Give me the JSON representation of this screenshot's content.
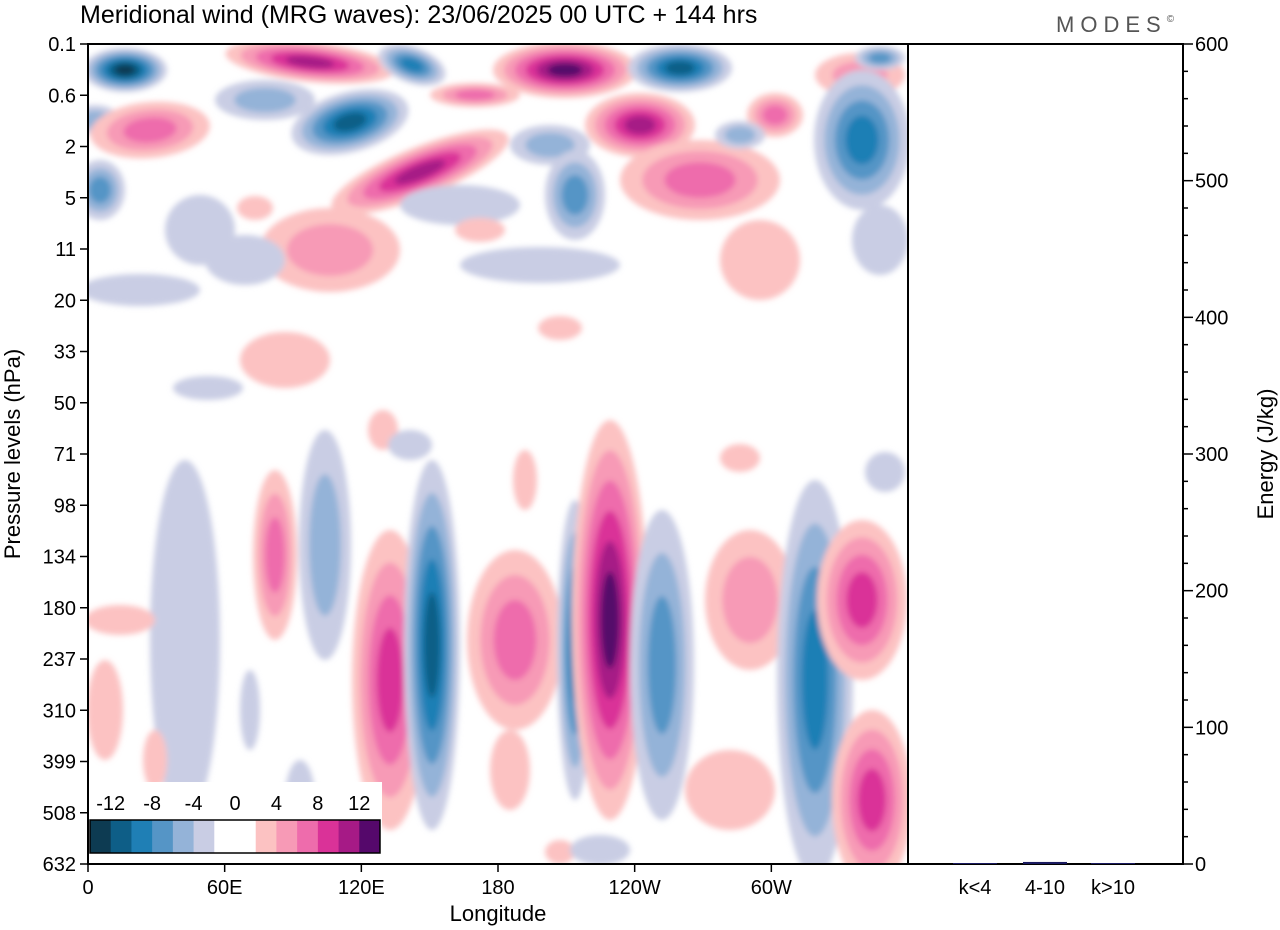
{
  "title": "Meridional wind (MRG waves):  23/06/2025  00 UTC  + 144 hrs",
  "logo": "MODES",
  "logo_mark": "©",
  "chart_data": [
    {
      "type": "heatmap",
      "xlabel": "Longitude",
      "ylabel": "Pressure levels (hPa)",
      "x_ticks": [
        "0",
        "60E",
        "120E",
        "180",
        "120W",
        "60W"
      ],
      "y_ticks": [
        "0.1",
        "0.6",
        "2",
        "5",
        "11",
        "20",
        "33",
        "50",
        "71",
        "98",
        "134",
        "180",
        "237",
        "310",
        "399",
        "508",
        "632"
      ],
      "colorbar": {
        "labels": [
          "-12",
          "-8",
          "-4",
          "0",
          "4",
          "8",
          "12"
        ],
        "levels": [
          -14,
          -12,
          -10,
          -8,
          -6,
          -4,
          -2,
          2,
          4,
          6,
          8,
          10,
          12,
          14
        ],
        "colors": [
          "#0d3b52",
          "#0e5e87",
          "#1f7fb5",
          "#5595c6",
          "#94b3d8",
          "#c9cde4",
          "#ffffff",
          "#ffffff",
          "#fcc2c2",
          "#f79ab6",
          "#ee6cac",
          "#da3298",
          "#a61a86",
          "#55086b"
        ]
      }
    },
    {
      "type": "bar",
      "ylabel": "Energy (J/kg)",
      "categories": [
        "k<4",
        "4-10",
        "k>10"
      ],
      "values": [
        0.3,
        1.5,
        0.2
      ],
      "ylim": [
        0,
        600
      ],
      "y_ticks": [
        "0",
        "100",
        "200",
        "300",
        "400",
        "500",
        "600"
      ],
      "bar_color": "#1a1a60"
    }
  ]
}
